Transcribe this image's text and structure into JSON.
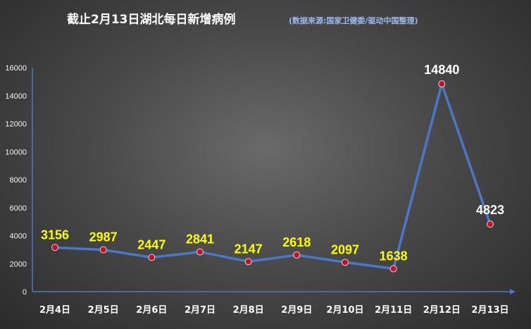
{
  "chart_data": {
    "type": "line",
    "title": "截止2月13日湖北每日新增病例",
    "subtitle": "(数据来源:国家卫健委/驱动中国整理)",
    "categories": [
      "2月4日",
      "2月5日",
      "2月6日",
      "2月7日",
      "2月8日",
      "2月9日",
      "2月10日",
      "2月11日",
      "2月12日",
      "2月13日"
    ],
    "series": [
      {
        "values": [
          3156,
          2987,
          2447,
          2841,
          2147,
          2618,
          2097,
          1638,
          14840,
          4823
        ]
      }
    ],
    "yticks": [
      "0",
      "2000",
      "4000",
      "6000",
      "8000",
      "10000",
      "12000",
      "14000",
      "16000"
    ],
    "ylim": [
      0,
      16000
    ],
    "xlabel": "",
    "ylabel": "",
    "grid": false,
    "colors": {
      "line": "#4a78c9",
      "marker": "#c0112b",
      "label_normal": "#ffff00",
      "label_highlight": "#ffffff",
      "axis": "#4a78c9",
      "title": "#ffffff",
      "subtitle": "#9db8ea"
    },
    "highlight_indices": [
      8,
      9
    ]
  }
}
